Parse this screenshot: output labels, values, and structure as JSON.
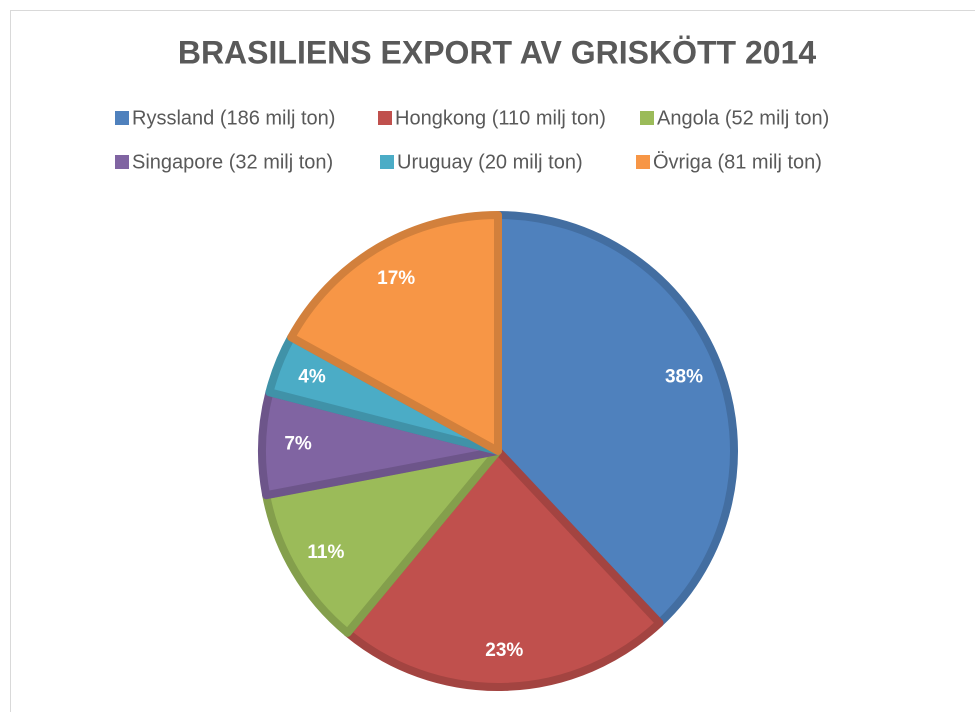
{
  "chart_data": {
    "type": "pie",
    "title": "BRASILIENS EXPORT AV GRISKÖTT 2014",
    "categories": [
      "Ryssland (186 milj ton)",
      "Hongkong (110 milj ton)",
      "Angola (52 milj ton)",
      "Singapore (32 milj ton)",
      "Uruguay (20 milj ton)",
      "Övriga (81 milj ton)"
    ],
    "values": [
      38,
      23,
      11,
      7,
      4,
      17
    ],
    "value_labels": [
      "38%",
      "23%",
      "11%",
      "7%",
      "4%",
      "17%"
    ],
    "colors": [
      "#4f81bd",
      "#c0504d",
      "#9bbb59",
      "#8064a2",
      "#4bacc6",
      "#f79646"
    ],
    "legend": "top"
  }
}
